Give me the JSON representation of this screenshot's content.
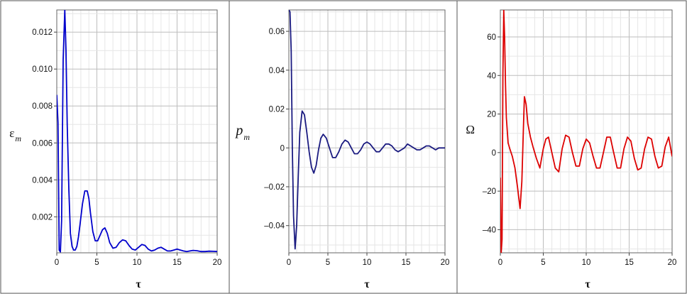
{
  "chart_data": [
    {
      "type": "line",
      "xlabel": "τ",
      "ylabel": "ε",
      "ylabel_sub": "m",
      "xlim": [
        0,
        20
      ],
      "ylim": [
        5e-05,
        0.0132
      ],
      "x_ticks": [
        0,
        5,
        10,
        15,
        20
      ],
      "x_tick_labels": [
        "0",
        "5",
        "10",
        "15",
        "20"
      ],
      "y_ticks": [
        0.002,
        0.004,
        0.006,
        0.008,
        0.01,
        0.012
      ],
      "y_tick_labels": [
        "0.002",
        "0.004",
        "0.006",
        "0.008",
        "0.010",
        "0.012"
      ],
      "grid": true,
      "line_color": "#0000cc",
      "series": [
        {
          "x": [
            0,
            0.15,
            0.3,
            0.45,
            0.6,
            0.8,
            1.0,
            1.15,
            1.3,
            1.5,
            1.7,
            1.9,
            2.1,
            2.3,
            2.5,
            2.7,
            2.9,
            3.2,
            3.5,
            3.8,
            4.0,
            4.2,
            4.5,
            4.8,
            5.1,
            5.4,
            5.7,
            6.0,
            6.3,
            6.6,
            7.0,
            7.4,
            7.8,
            8.2,
            8.6,
            9.0,
            9.4,
            9.8,
            10.2,
            10.6,
            11.0,
            11.4,
            11.8,
            12.2,
            12.6,
            13.0,
            13.4,
            13.8,
            14.2,
            14.6,
            15.0,
            15.4,
            15.8,
            16.2,
            16.6,
            17.0,
            17.5,
            18.0,
            18.5,
            19.0,
            19.5,
            20.0
          ],
          "y": [
            0.0086,
            0.0071,
            0.0002,
            0.0001,
            0.0018,
            0.0105,
            0.0132,
            0.011,
            0.007,
            0.0035,
            0.0011,
            0.0004,
            0.0002,
            0.0002,
            0.0004,
            0.0009,
            0.0016,
            0.0027,
            0.0034,
            0.0034,
            0.003,
            0.0022,
            0.0012,
            0.0007,
            0.0007,
            0.001,
            0.0013,
            0.0014,
            0.0011,
            0.0006,
            0.0003,
            0.00035,
            0.0006,
            0.00075,
            0.0007,
            0.00045,
            0.00025,
            0.0002,
            0.00035,
            0.0005,
            0.00045,
            0.00025,
            0.00015,
            0.0002,
            0.0003,
            0.00035,
            0.00025,
            0.00015,
            0.00015,
            0.0002,
            0.00025,
            0.0002,
            0.00015,
            0.00012,
            0.00015,
            0.00018,
            0.00016,
            0.00012,
            0.00012,
            0.00014,
            0.00013,
            0.00012
          ]
        }
      ]
    },
    {
      "type": "line",
      "xlabel": "τ",
      "ylabel": "p",
      "ylabel_sub": "m",
      "xlim": [
        0,
        20
      ],
      "ylim": [
        -0.054,
        0.071
      ],
      "x_ticks": [
        0,
        5,
        10,
        15,
        20
      ],
      "x_tick_labels": [
        "0",
        "5",
        "10",
        "15",
        "20"
      ],
      "y_ticks": [
        -0.04,
        -0.02,
        0,
        0.02,
        0.04,
        0.06
      ],
      "y_tick_labels": [
        "–0.04",
        "–0.02",
        "0",
        "0.02",
        "0.04",
        "0.06"
      ],
      "grid": true,
      "line_color": "#1a1a80",
      "series": [
        {
          "x": [
            0,
            0.15,
            0.3,
            0.45,
            0.6,
            0.8,
            1.0,
            1.2,
            1.4,
            1.7,
            2.0,
            2.3,
            2.6,
            2.9,
            3.2,
            3.5,
            3.8,
            4.1,
            4.4,
            4.8,
            5.2,
            5.6,
            6.0,
            6.4,
            6.8,
            7.2,
            7.6,
            8.0,
            8.4,
            8.8,
            9.2,
            9.6,
            10.0,
            10.4,
            10.8,
            11.2,
            11.6,
            12.0,
            12.4,
            12.8,
            13.2,
            13.6,
            14.0,
            14.4,
            14.8,
            15.2,
            15.6,
            16.0,
            16.4,
            16.8,
            17.2,
            17.6,
            18.0,
            18.4,
            18.8,
            19.2,
            19.6,
            20.0
          ],
          "y": [
            0.071,
            0.07,
            0.05,
            0.0,
            -0.035,
            -0.052,
            -0.04,
            -0.015,
            0.008,
            0.019,
            0.017,
            0.008,
            -0.002,
            -0.01,
            -0.013,
            -0.009,
            -0.001,
            0.005,
            0.007,
            0.005,
            0.0,
            -0.005,
            -0.005,
            -0.002,
            0.002,
            0.004,
            0.003,
            0.0,
            -0.003,
            -0.003,
            -0.001,
            0.002,
            0.003,
            0.002,
            0.0,
            -0.002,
            -0.002,
            0.0,
            0.002,
            0.002,
            0.001,
            -0.001,
            -0.002,
            -0.001,
            0.0,
            0.002,
            0.001,
            0.0,
            -0.001,
            -0.001,
            0.0,
            0.001,
            0.001,
            0.0,
            -0.001,
            0.0,
            0.0,
            0.0
          ]
        }
      ]
    },
    {
      "type": "line",
      "xlabel": "τ",
      "ylabel": "Ω",
      "xlim": [
        0,
        20
      ],
      "ylim": [
        -52,
        74
      ],
      "x_ticks": [
        0,
        5,
        10,
        15,
        20
      ],
      "x_tick_labels": [
        "0",
        "5",
        "10",
        "15",
        "20"
      ],
      "y_ticks": [
        -40,
        -20,
        0,
        20,
        40,
        60
      ],
      "y_tick_labels": [
        "–40",
        "–20",
        "0",
        "20",
        "40",
        "60"
      ],
      "grid": true,
      "line_color": "#dd0000",
      "series": [
        {
          "x": [
            0,
            0.1,
            0.2,
            0.3,
            0.4,
            0.5,
            0.6,
            0.7,
            0.9,
            1.1,
            1.4,
            1.7,
            2.0,
            2.3,
            2.5,
            2.7,
            2.8,
            3.0,
            3.2,
            3.5,
            3.8,
            4.2,
            4.6,
            5.0,
            5.3,
            5.6,
            6.0,
            6.4,
            6.8,
            7.2,
            7.6,
            8.0,
            8.4,
            8.8,
            9.2,
            9.6,
            10.0,
            10.4,
            10.8,
            11.2,
            11.6,
            12.0,
            12.4,
            12.8,
            13.2,
            13.6,
            14.0,
            14.4,
            14.8,
            15.2,
            15.6,
            16.0,
            16.4,
            16.8,
            17.2,
            17.6,
            18.0,
            18.4,
            18.8,
            19.2,
            19.6,
            20.0
          ],
          "y": [
            -13,
            -52,
            -45,
            40,
            74,
            60,
            35,
            18,
            5,
            2,
            -2,
            -8,
            -18,
            -29,
            -15,
            15,
            29,
            25,
            15,
            8,
            3,
            -3,
            -8,
            2,
            7,
            8,
            0,
            -8,
            -10,
            2,
            9,
            8,
            0,
            -7,
            -7,
            2,
            7,
            5,
            -2,
            -8,
            -8,
            0,
            8,
            8,
            0,
            -8,
            -8,
            2,
            8,
            6,
            -3,
            -9,
            -8,
            2,
            8,
            7,
            -2,
            -8,
            -7,
            3,
            8,
            -2
          ]
        }
      ]
    }
  ]
}
